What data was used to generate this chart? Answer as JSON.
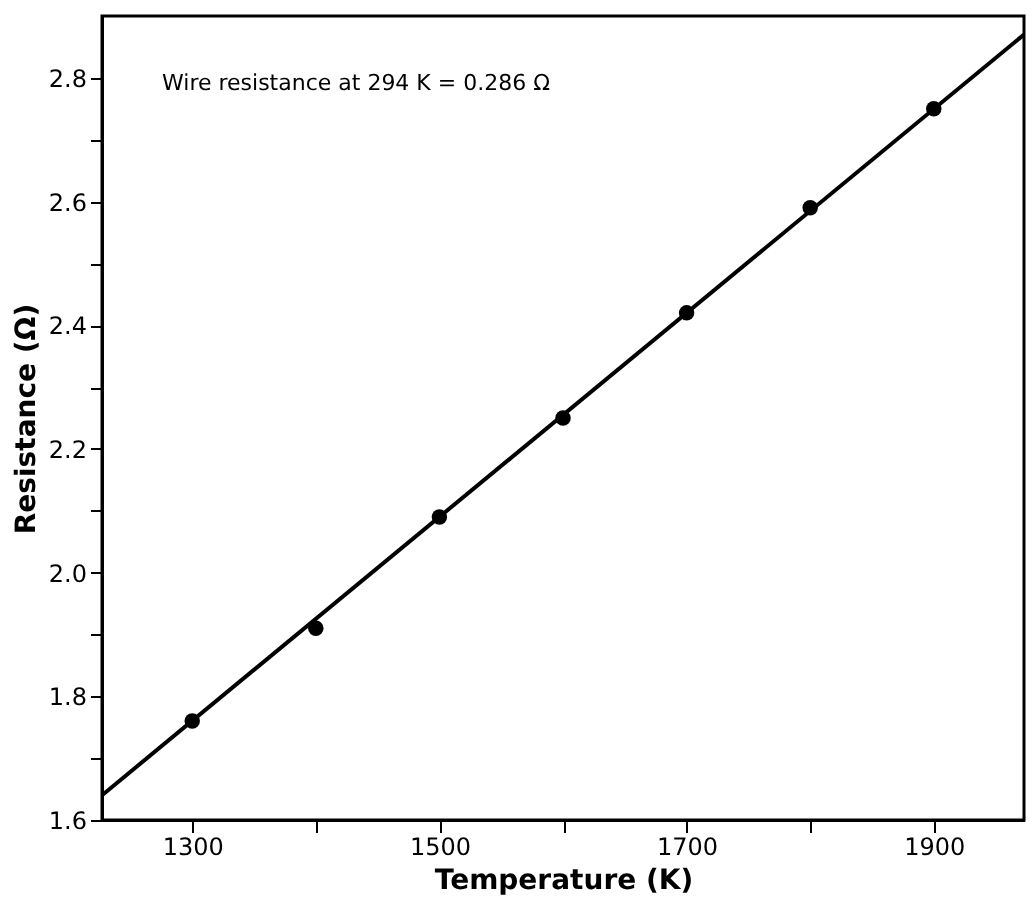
{
  "chart_data": {
    "type": "scatter",
    "xlabel": "Temperature (K)",
    "ylabel": "Resistance (Ω)",
    "annotations": [
      "Wire resistance at 294 K = 0.286 Ω"
    ],
    "x": [
      1300,
      1400,
      1500,
      1600,
      1700,
      1800,
      1900
    ],
    "series": [
      {
        "color": "#000000",
        "values": [
          1.76,
          1.91,
          2.09,
          2.25,
          2.42,
          2.59,
          2.75
        ]
      },
      {
        "type": "line",
        "marker": "none",
        "color": "#000000",
        "x": [
          1227,
          1973
        ],
        "values": [
          1.64,
          2.87
        ]
      }
    ],
    "marker": "circle",
    "line_style": "solid",
    "grid": false,
    "xlim": [
      1227,
      1973
    ],
    "ylim": [
      1.6,
      2.9
    ],
    "xticks": [
      1300,
      {
        "value": 1400,
        "label": null
      },
      1500,
      {
        "value": 1600,
        "label": null
      },
      1700,
      {
        "value": 1800,
        "label": null
      },
      1900
    ],
    "yticks": [
      1.6,
      {
        "value": 1.7,
        "label": null
      },
      1.8,
      {
        "value": 1.9,
        "label": null
      },
      {
        "value": 2.0,
        "label": "2.0"
      },
      {
        "value": 2.1,
        "label": null
      },
      2.2,
      {
        "value": 2.3,
        "label": null
      },
      2.4,
      {
        "value": 2.5,
        "label": null
      },
      2.6,
      {
        "value": 2.7,
        "label": null
      },
      2.8
    ]
  }
}
